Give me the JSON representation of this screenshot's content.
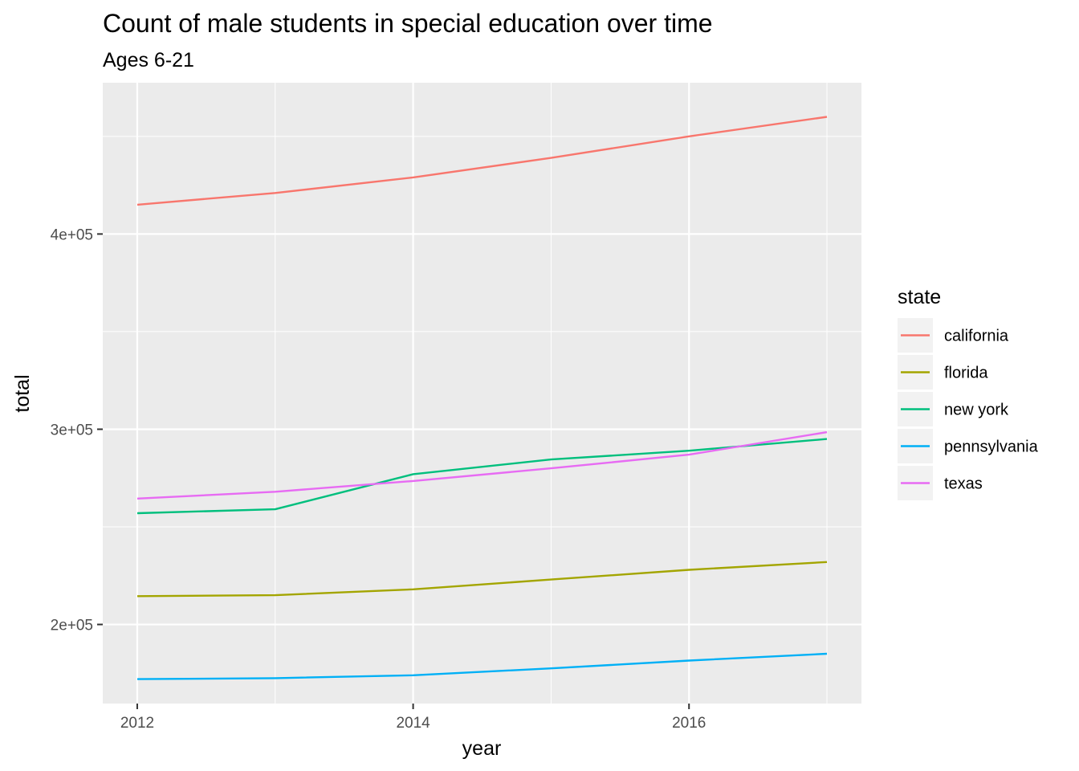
{
  "chart_data": {
    "type": "line",
    "title": "Count of male students in special education over time",
    "subtitle": "Ages 6-21",
    "xlabel": "year",
    "ylabel": "total",
    "x": [
      2012,
      2013,
      2014,
      2015,
      2016,
      2017
    ],
    "x_ticks": [
      "2012",
      "2014",
      "2016"
    ],
    "x_tick_values": [
      2012,
      2014,
      2016
    ],
    "y_ticks": [
      "2e+05",
      "3e+05",
      "4e+05"
    ],
    "y_tick_values": [
      200000,
      300000,
      400000
    ],
    "xlim": [
      2011.75,
      2017.25
    ],
    "ylim": [
      159500,
      477500
    ],
    "grid": true,
    "legend_title": "state",
    "legend_position": "right",
    "series": [
      {
        "name": "california",
        "color": "#F8766D",
        "values": [
          415000,
          421000,
          429000,
          439000,
          450000,
          460000
        ]
      },
      {
        "name": "florida",
        "color": "#A3A500",
        "values": [
          214500,
          215000,
          218000,
          223000,
          228000,
          232000
        ]
      },
      {
        "name": "new york",
        "color": "#00BF7D",
        "values": [
          257000,
          259000,
          277000,
          284500,
          289000,
          295000
        ]
      },
      {
        "name": "pennsylvania",
        "color": "#00B0F6",
        "values": [
          172000,
          172500,
          174000,
          177500,
          181500,
          185000
        ]
      },
      {
        "name": "texas",
        "color": "#E76BF3",
        "values": [
          264500,
          268000,
          273500,
          280000,
          287000,
          298500
        ]
      }
    ]
  }
}
